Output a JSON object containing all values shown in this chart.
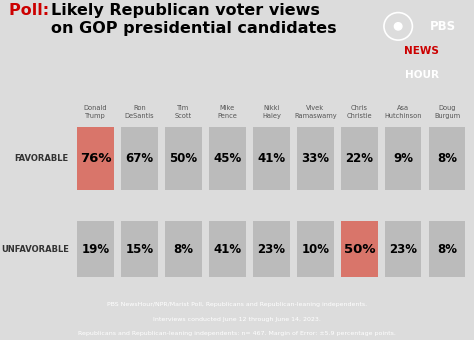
{
  "candidates": [
    "Donald\nTrump",
    "Ron\nDeSantis",
    "Tim\nScott",
    "Mike\nPence",
    "Nikki\nHaley",
    "Vivek\nRamaswamy",
    "Chris\nChristie",
    "Asa\nHutchinson",
    "Doug\nBurgum"
  ],
  "favorable": [
    76,
    67,
    50,
    45,
    41,
    33,
    22,
    9,
    8
  ],
  "unfavorable": [
    19,
    15,
    8,
    41,
    23,
    10,
    50,
    23,
    8
  ],
  "favorable_highlight": [
    0
  ],
  "unfavorable_highlight": [
    6
  ],
  "highlight_color": "#d9756a",
  "bar_color": "#bbbbbb",
  "bg_color": "#dcdcdc",
  "footer_bg": "#1c2b4a",
  "footer_text_color": "#ffffff",
  "label_row1": "FAVORABLE",
  "label_row2": "UNFAVORABLE",
  "footer_line1": "PBS NewsHour/NPR/Marist Poll, Republicans and Republican-leaning independents.",
  "footer_line2": "Interviews conducted June 12 through June 14, 2023.",
  "footer_line3": "Republicans and Republican-leaning independents: n= 467. Margin of Error: ±5.9 percentage points.",
  "pbs_logo_bg": "#1c2b4a",
  "pbs_news_color": "#cc0000",
  "red_color": "#cc0000",
  "title_text": "Likely Republican voter views\non GOP presidential candidates"
}
